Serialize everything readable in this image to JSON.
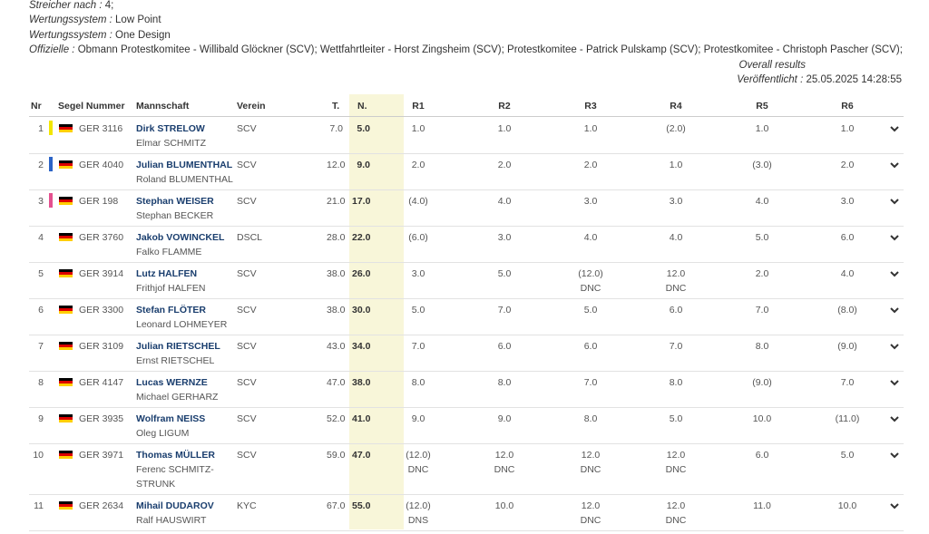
{
  "meta": {
    "streicher_key": "Streicher nach :",
    "streicher_val": " 4;",
    "ws1_key": "Wertungssystem :",
    "ws1_val": " Low Point",
    "ws2_key": "Wertungssystem :",
    "ws2_val": " One Design",
    "off_key": "Offizielle :",
    "off_val": " Obmann Protestkomitee - Willibald Glöckner (SCV); Wettfahrtleiter - Horst Zingsheim (SCV); Protestkomitee - Patrick Pulskamp (SCV); Protestkomitee - Christoph Pascher (SCV);",
    "overall": "Overall results",
    "pub_key": "Veröffentlicht :",
    "pub_val": " 25.05.2025 14:28:55"
  },
  "headers": {
    "nr": "Nr",
    "sail": "Segel Nummer",
    "crew": "Mannschaft",
    "club": "Verein",
    "t": "T.",
    "n": "N.",
    "r1": "R1",
    "r2": "R2",
    "r3": "R3",
    "r4": "R4",
    "r5": "R5",
    "r6": "R6"
  },
  "colors": {
    "accent": "#1a3e6e",
    "tpos_bg": "#f8f6d9",
    "chevron": "#333333"
  },
  "rows": [
    {
      "nr": "1",
      "marker": "#f2e600",
      "sail": "GER 3116",
      "skipper": "Dirk STRELOW",
      "crew": "Elmar SCHMITZ",
      "club": "SCV",
      "t": "7.0",
      "n": "5.0",
      "r": [
        [
          "1.0",
          ""
        ],
        [
          "1.0",
          ""
        ],
        [
          "1.0",
          ""
        ],
        [
          "(2.0)",
          ""
        ],
        [
          "1.0",
          ""
        ],
        [
          "1.0",
          ""
        ]
      ]
    },
    {
      "nr": "2",
      "marker": "#2b63c6",
      "sail": "GER 4040",
      "skipper": "Julian BLUMENTHAL",
      "crew": "Roland BLUMENTHAL",
      "club": "SCV",
      "t": "12.0",
      "n": "9.0",
      "r": [
        [
          "2.0",
          ""
        ],
        [
          "2.0",
          ""
        ],
        [
          "2.0",
          ""
        ],
        [
          "1.0",
          ""
        ],
        [
          "(3.0)",
          ""
        ],
        [
          "2.0",
          ""
        ]
      ]
    },
    {
      "nr": "3",
      "marker": "#e4508f",
      "sail": "GER 198",
      "skipper": "Stephan WEISER",
      "crew": "Stephan BECKER",
      "club": "SCV",
      "t": "21.0",
      "n": "17.0",
      "r": [
        [
          "(4.0)",
          ""
        ],
        [
          "4.0",
          ""
        ],
        [
          "3.0",
          ""
        ],
        [
          "3.0",
          ""
        ],
        [
          "4.0",
          ""
        ],
        [
          "3.0",
          ""
        ]
      ]
    },
    {
      "nr": "4",
      "marker": "",
      "sail": "GER 3760",
      "skipper": "Jakob VOWINCKEL",
      "crew": "Falko FLAMME",
      "club": "DSCL",
      "t": "28.0",
      "n": "22.0",
      "r": [
        [
          "(6.0)",
          ""
        ],
        [
          "3.0",
          ""
        ],
        [
          "4.0",
          ""
        ],
        [
          "4.0",
          ""
        ],
        [
          "5.0",
          ""
        ],
        [
          "6.0",
          ""
        ]
      ]
    },
    {
      "nr": "5",
      "marker": "",
      "sail": "GER 3914",
      "skipper": "Lutz HALFEN",
      "crew": "Frithjof HALFEN",
      "club": "SCV",
      "t": "38.0",
      "n": "26.0",
      "r": [
        [
          "3.0",
          ""
        ],
        [
          "5.0",
          ""
        ],
        [
          "(12.0)",
          "DNC"
        ],
        [
          "12.0",
          "DNC"
        ],
        [
          "2.0",
          ""
        ],
        [
          "4.0",
          ""
        ]
      ]
    },
    {
      "nr": "6",
      "marker": "",
      "sail": "GER 3300",
      "skipper": "Stefan FLÖTER",
      "crew": "Leonard LOHMEYER",
      "club": "SCV",
      "t": "38.0",
      "n": "30.0",
      "r": [
        [
          "5.0",
          ""
        ],
        [
          "7.0",
          ""
        ],
        [
          "5.0",
          ""
        ],
        [
          "6.0",
          ""
        ],
        [
          "7.0",
          ""
        ],
        [
          "(8.0)",
          ""
        ]
      ]
    },
    {
      "nr": "7",
      "marker": "",
      "sail": "GER 3109",
      "skipper": "Julian RIETSCHEL",
      "crew": "Ernst RIETSCHEL",
      "club": "SCV",
      "t": "43.0",
      "n": "34.0",
      "r": [
        [
          "7.0",
          ""
        ],
        [
          "6.0",
          ""
        ],
        [
          "6.0",
          ""
        ],
        [
          "7.0",
          ""
        ],
        [
          "8.0",
          ""
        ],
        [
          "(9.0)",
          ""
        ]
      ]
    },
    {
      "nr": "8",
      "marker": "",
      "sail": "GER 4147",
      "skipper": "Lucas WERNZE",
      "crew": "Michael GERHARZ",
      "club": "SCV",
      "t": "47.0",
      "n": "38.0",
      "r": [
        [
          "8.0",
          ""
        ],
        [
          "8.0",
          ""
        ],
        [
          "7.0",
          ""
        ],
        [
          "8.0",
          ""
        ],
        [
          "(9.0)",
          ""
        ],
        [
          "7.0",
          ""
        ]
      ]
    },
    {
      "nr": "9",
      "marker": "",
      "sail": "GER 3935",
      "skipper": "Wolfram NEISS",
      "crew": "Oleg LIGUM",
      "club": "SCV",
      "t": "52.0",
      "n": "41.0",
      "r": [
        [
          "9.0",
          ""
        ],
        [
          "9.0",
          ""
        ],
        [
          "8.0",
          ""
        ],
        [
          "5.0",
          ""
        ],
        [
          "10.0",
          ""
        ],
        [
          "(11.0)",
          ""
        ]
      ]
    },
    {
      "nr": "10",
      "marker": "",
      "sail": "GER 3971",
      "skipper": "Thomas MÜLLER",
      "crew": "Ferenc SCHMITZ-",
      "crew2": "STRUNK",
      "club": "SCV",
      "t": "59.0",
      "n": "47.0",
      "r": [
        [
          "(12.0)",
          "DNC"
        ],
        [
          "12.0",
          "DNC"
        ],
        [
          "12.0",
          "DNC"
        ],
        [
          "12.0",
          "DNC"
        ],
        [
          "6.0",
          ""
        ],
        [
          "5.0",
          ""
        ]
      ]
    },
    {
      "nr": "11",
      "marker": "",
      "sail": "GER 2634",
      "skipper": "Mihail DUDAROV",
      "crew": "Ralf HAUSWIRT",
      "club": "KYC",
      "t": "67.0",
      "n": "55.0",
      "r": [
        [
          "(12.0)",
          "DNS"
        ],
        [
          "10.0",
          ""
        ],
        [
          "12.0",
          "DNC"
        ],
        [
          "12.0",
          "DNC"
        ],
        [
          "11.0",
          ""
        ],
        [
          "10.0",
          ""
        ]
      ]
    }
  ]
}
